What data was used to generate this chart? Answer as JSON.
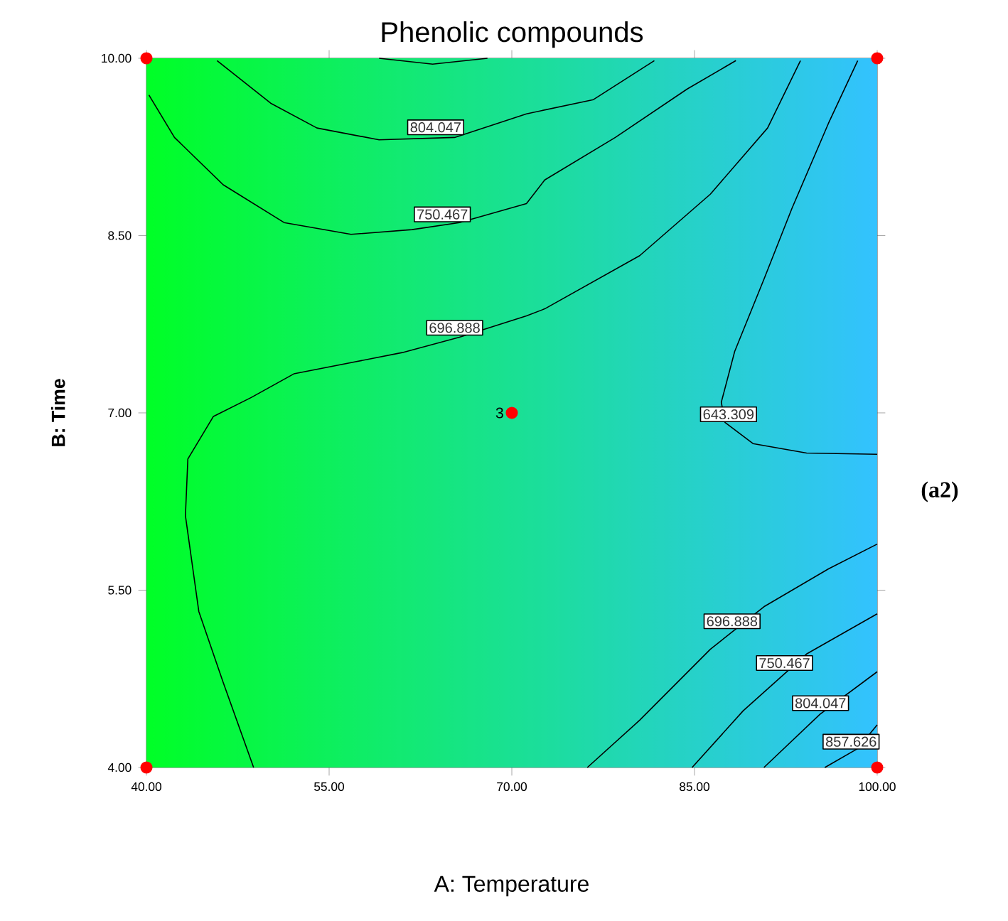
{
  "chart_data": {
    "type": "line",
    "title": "Phenolic compounds",
    "xlabel": "A: Temperature",
    "ylabel": "B: Time",
    "xlim": [
      40,
      100
    ],
    "ylim": [
      4,
      10
    ],
    "xticks": [
      {
        "value": 40,
        "label": "40.00"
      },
      {
        "value": 55,
        "label": "55.00"
      },
      {
        "value": 70,
        "label": "70.00"
      },
      {
        "value": 85,
        "label": "85.00"
      },
      {
        "value": 100,
        "label": "100.00"
      }
    ],
    "yticks": [
      {
        "value": 4,
        "label": "4.00"
      },
      {
        "value": 5.5,
        "label": "5.50"
      },
      {
        "value": 7,
        "label": "7.00"
      },
      {
        "value": 8.5,
        "label": "8.50"
      },
      {
        "value": 10,
        "label": "10.00"
      }
    ],
    "annotations": [
      {
        "text": "3",
        "x": 70,
        "y": 7
      },
      "(a2)"
    ],
    "series": [
      {
        "name": "804.047",
        "color": "#000000",
        "x": [
          45.8,
          50.2,
          54.0,
          59.1,
          65.3,
          71.2,
          76.7,
          81.7
        ],
        "values": [
          9.98,
          9.62,
          9.41,
          9.31,
          9.33,
          9.53,
          9.65,
          9.98
        ]
      },
      {
        "color": "#000000",
        "x": [
          59.1,
          63.5,
          68.0
        ],
        "values": [
          10,
          9.95,
          10
        ]
      },
      {
        "name": "750.467",
        "color": "#000000",
        "x": [
          40.2,
          42.3,
          46.3,
          51.3,
          56.8,
          61.8,
          65.7,
          71.2,
          72.7,
          78.5,
          84.4,
          88.4
        ],
        "values": [
          9.69,
          9.33,
          8.93,
          8.61,
          8.51,
          8.55,
          8.61,
          8.77,
          8.97,
          9.33,
          9.74,
          9.98
        ]
      },
      {
        "name": "696.888",
        "color": "#000000",
        "x": [
          48.8,
          46.3,
          44.3,
          43.2,
          43.4,
          45.5,
          48.6,
          52.1,
          61.0,
          65.7,
          71.2,
          72.7,
          80.5,
          86.3,
          91.0,
          93.7
        ],
        "values": [
          4.0,
          4.72,
          5.32,
          6.13,
          6.61,
          6.97,
          7.13,
          7.33,
          7.51,
          7.64,
          7.82,
          7.88,
          8.33,
          8.85,
          9.41,
          9.98
        ]
      },
      {
        "name": "643.309",
        "color": "#000000",
        "x": [
          98.4,
          96.0,
          93.0,
          90.7,
          88.3,
          87.2,
          87.5,
          89.8,
          94.2,
          100
        ],
        "values": [
          9.98,
          9.45,
          8.73,
          8.13,
          7.52,
          7.09,
          6.92,
          6.74,
          6.66,
          6.65
        ]
      },
      {
        "name": "696.888",
        "color": "#000000",
        "x": [
          76.2,
          80.5,
          86.3,
          90.7,
          96.0,
          100
        ],
        "values": [
          4.0,
          4.4,
          5.0,
          5.36,
          5.68,
          5.89
        ]
      },
      {
        "name": "750.467",
        "color": "#000000",
        "x": [
          84.8,
          89.0,
          94.2,
          100
        ],
        "values": [
          4.0,
          4.48,
          4.96,
          5.3
        ]
      },
      {
        "name": "804.047",
        "color": "#000000",
        "x": [
          90.7,
          95.3,
          100
        ],
        "values": [
          4.0,
          4.45,
          4.81
        ]
      },
      {
        "name": "857.626",
        "color": "#000000",
        "x": [
          95.7,
          98.4,
          100
        ],
        "values": [
          4.0,
          4.16,
          4.36
        ]
      },
      {
        "type": "scatter",
        "color": "#ff0000",
        "x": [
          40,
          40,
          100,
          100,
          70
        ],
        "values": [
          4,
          10,
          10,
          4,
          7
        ]
      }
    ]
  }
}
